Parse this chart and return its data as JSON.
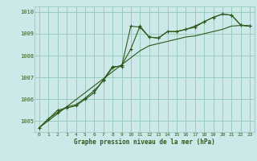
{
  "xlabel": "Graphe pression niveau de la mer (hPa)",
  "bg_color": "#cce8e8",
  "grid_color": "#99ccbb",
  "line_color": "#2d5a1b",
  "hours": [
    0,
    1,
    2,
    3,
    4,
    5,
    6,
    7,
    8,
    9,
    10,
    11,
    12,
    13,
    14,
    15,
    16,
    17,
    18,
    19,
    20,
    21,
    22,
    23
  ],
  "series1": [
    1004.7,
    1005.1,
    1005.5,
    1005.6,
    1005.7,
    1006.0,
    1006.3,
    1006.9,
    1007.5,
    1007.5,
    1009.35,
    1009.3,
    1008.85,
    1008.8,
    1009.1,
    1009.1,
    1009.2,
    1009.3,
    1009.55,
    1009.75,
    1009.9,
    1009.85,
    1009.4,
    1009.35
  ],
  "series2": [
    1004.7,
    1005.1,
    1005.4,
    1005.65,
    1005.75,
    1006.05,
    1006.4,
    1006.85,
    1007.45,
    1007.55,
    1008.3,
    1009.35,
    1008.85,
    1008.8,
    1009.1,
    1009.1,
    1009.2,
    1009.35,
    1009.55,
    1009.75,
    1009.9,
    1009.85,
    1009.4,
    1009.35
  ],
  "series_straight": [
    1004.7,
    1005.02,
    1005.34,
    1005.66,
    1005.98,
    1006.3,
    1006.62,
    1006.94,
    1007.26,
    1007.58,
    1007.9,
    1008.22,
    1008.45,
    1008.55,
    1008.65,
    1008.75,
    1008.85,
    1008.9,
    1009.0,
    1009.1,
    1009.2,
    1009.35,
    1009.38,
    1009.35
  ],
  "ylim": [
    1004.5,
    1010.25
  ],
  "yticks": [
    1005,
    1006,
    1007,
    1008,
    1009,
    1010
  ],
  "xlim": [
    -0.5,
    23.5
  ],
  "xticks": [
    0,
    1,
    2,
    3,
    4,
    5,
    6,
    7,
    8,
    9,
    10,
    11,
    12,
    13,
    14,
    15,
    16,
    17,
    18,
    19,
    20,
    21,
    22,
    23
  ]
}
